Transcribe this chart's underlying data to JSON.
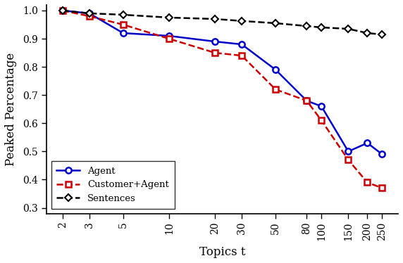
{
  "x_values": [
    2,
    3,
    5,
    10,
    20,
    30,
    50,
    80,
    100,
    150,
    200,
    250
  ],
  "agent": [
    1.0,
    0.99,
    0.92,
    0.91,
    0.89,
    0.88,
    0.79,
    0.68,
    0.66,
    0.5,
    0.53,
    0.49
  ],
  "customer_agent": [
    1.0,
    0.98,
    0.95,
    0.9,
    0.85,
    0.84,
    0.72,
    0.68,
    0.61,
    0.47,
    0.39,
    0.37
  ],
  "sentences": [
    1.0,
    0.99,
    0.985,
    0.975,
    0.97,
    0.963,
    0.955,
    0.945,
    0.94,
    0.935,
    0.92,
    0.915
  ],
  "agent_color": "#0000cc",
  "customer_agent_color": "#cc0000",
  "sentences_color": "#000000",
  "ylabel": "Peaked Percentage",
  "xlabel": "Topics t",
  "ylim": [
    0.28,
    1.02
  ],
  "yticks": [
    0.3,
    0.4,
    0.5,
    0.6,
    0.7,
    0.8,
    0.9,
    1.0
  ],
  "legend_labels": [
    "Agent",
    "Customer+Agent",
    "Sentences"
  ]
}
